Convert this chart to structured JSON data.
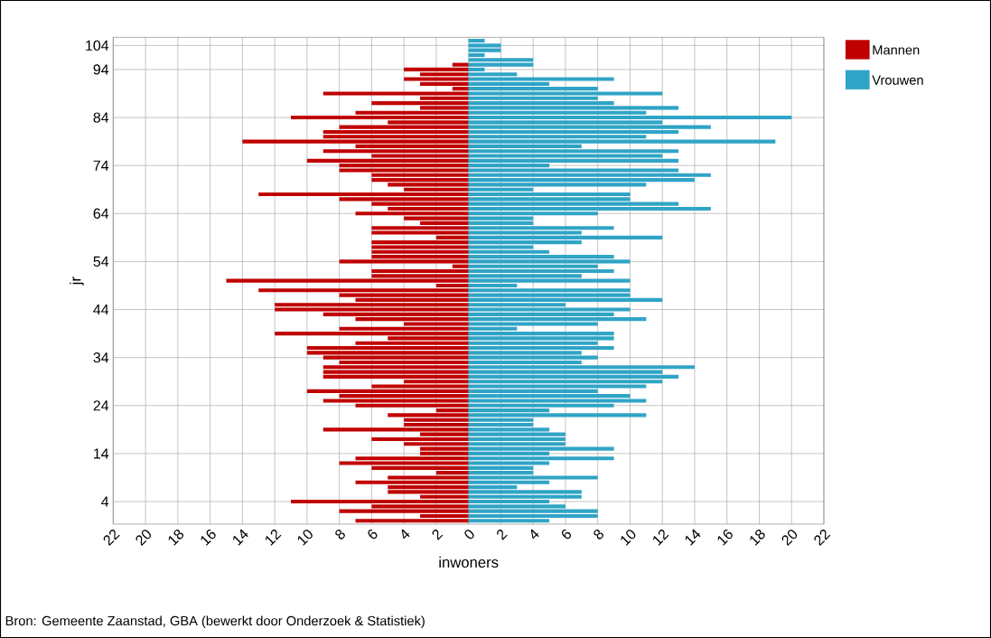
{
  "chart_data": {
    "type": "bar",
    "orientation": "horizontal",
    "stacked": true,
    "categories": [
      null,
      "104",
      null,
      null,
      null,
      null,
      "94",
      null,
      null,
      null,
      null,
      null,
      null,
      null,
      null,
      null,
      "84",
      null,
      null,
      null,
      null,
      null,
      null,
      null,
      null,
      null,
      "74",
      null,
      null,
      null,
      null,
      null,
      null,
      null,
      null,
      null,
      "64",
      null,
      null,
      null,
      null,
      null,
      null,
      null,
      null,
      null,
      "54",
      null,
      null,
      null,
      null,
      null,
      null,
      null,
      null,
      null,
      "44",
      null,
      null,
      null,
      null,
      null,
      null,
      null,
      null,
      null,
      "34",
      null,
      null,
      null,
      null,
      null,
      null,
      null,
      null,
      null,
      "24",
      null,
      null,
      null,
      null,
      null,
      null,
      null,
      null,
      null,
      "14",
      null,
      null,
      null,
      null,
      null,
      null,
      null,
      null,
      null,
      "4",
      null,
      null,
      null,
      null
    ],
    "series": [
      {
        "name": "Mannen",
        "color": "#c00000",
        "values": [
          null,
          null,
          null,
          null,
          null,
          -1,
          -4,
          -3,
          -4,
          -3,
          -1,
          -9,
          -3,
          -6,
          -3,
          -7,
          -11,
          -5,
          -8,
          -9,
          -9,
          -14,
          -7,
          -9,
          -6,
          -10,
          -8,
          -8,
          -6,
          -6,
          -5,
          -4,
          -13,
          -8,
          -6,
          -5,
          -7,
          -4,
          -3,
          -6,
          -6,
          -2,
          -6,
          -6,
          -6,
          -6,
          -8,
          -1,
          -6,
          -6,
          -15,
          -2,
          -13,
          -8,
          -7,
          -12,
          -12,
          -9,
          -7,
          -4,
          -8,
          -12,
          -5,
          -7,
          -10,
          -10,
          -9,
          -8,
          -9,
          -9,
          -9,
          -4,
          -6,
          -10,
          -8,
          -9,
          -7,
          -2,
          -5,
          -4,
          -4,
          -9,
          -3,
          -6,
          -4,
          -3,
          -3,
          -7,
          -8,
          -6,
          -2,
          -5,
          -7,
          -5,
          -5,
          -3,
          -11,
          -6,
          -8,
          -3,
          -7
        ]
      },
      {
        "name": "Vrouwen",
        "color": "#2fa4c6",
        "values": [
          1,
          2,
          2,
          1,
          4,
          4,
          1,
          3,
          9,
          5,
          8,
          12,
          8,
          9,
          13,
          11,
          20,
          12,
          15,
          13,
          11,
          19,
          7,
          13,
          12,
          13,
          5,
          13,
          15,
          14,
          11,
          4,
          10,
          10,
          13,
          15,
          8,
          4,
          4,
          9,
          7,
          12,
          7,
          4,
          5,
          9,
          10,
          8,
          9,
          7,
          10,
          3,
          10,
          10,
          12,
          6,
          10,
          9,
          11,
          8,
          3,
          9,
          9,
          8,
          9,
          7,
          8,
          7,
          14,
          12,
          13,
          12,
          11,
          8,
          10,
          11,
          9,
          5,
          11,
          4,
          4,
          5,
          6,
          6,
          6,
          9,
          5,
          9,
          5,
          4,
          4,
          8,
          5,
          3,
          7,
          7,
          5,
          6,
          8,
          8,
          5
        ]
      }
    ],
    "xlim": [
      -22,
      22
    ],
    "xticks": [
      {
        "value": -22,
        "label": "22"
      },
      {
        "value": -20,
        "label": "20"
      },
      {
        "value": -18,
        "label": "18"
      },
      {
        "value": -16,
        "label": "16"
      },
      {
        "value": -14,
        "label": "14"
      },
      {
        "value": -12,
        "label": "12"
      },
      {
        "value": -10,
        "label": "10"
      },
      {
        "value": -8,
        "label": "8"
      },
      {
        "value": -6,
        "label": "6"
      },
      {
        "value": -4,
        "label": "4"
      },
      {
        "value": -2,
        "label": "2"
      },
      0,
      2,
      4,
      6,
      8,
      10,
      12,
      14,
      16,
      18,
      20,
      22
    ],
    "xlabel": "inwoners",
    "ylabel": "jr",
    "grid": true,
    "legend": "top right",
    "annotations": [
      "Bron: Gemeente Zaanstad, GBA (bewerkt door Onderzoek & Statistiek)"
    ]
  }
}
